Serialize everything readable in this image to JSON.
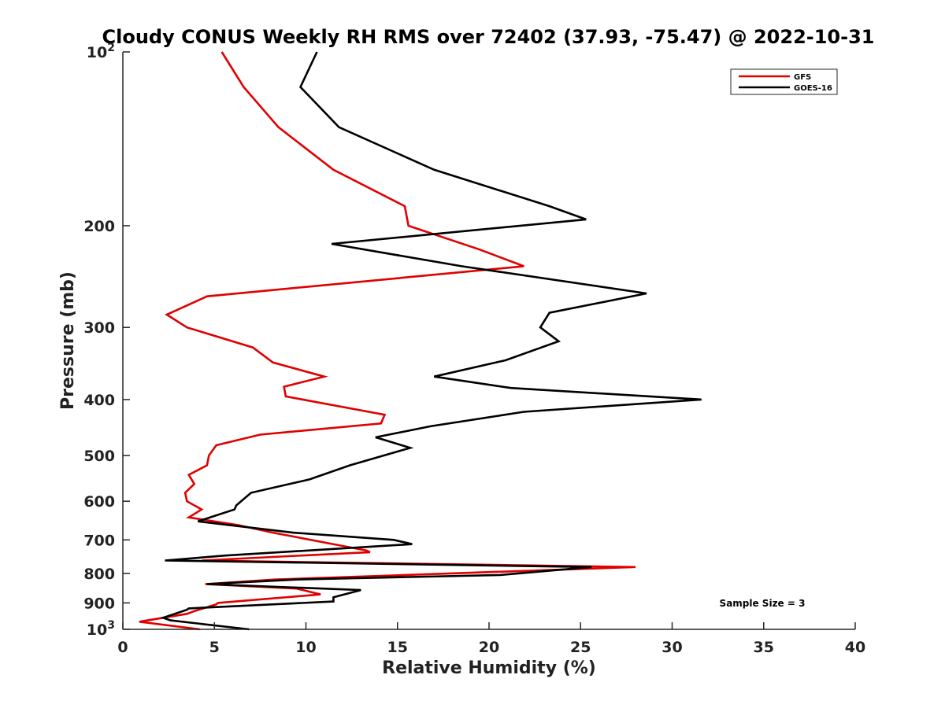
{
  "chart_data": {
    "type": "line",
    "title": "Cloudy CONUS Weekly RH RMS over 72402 (37.93, -75.47) @ 2022-10-31",
    "xlabel": "Relative Humidity (%)",
    "ylabel": "Pressure (mb)",
    "xlim": [
      0,
      40
    ],
    "ylim": [
      100,
      1000
    ],
    "y_scale": "log",
    "y_reversed": true,
    "x_ticks": [
      0,
      5,
      10,
      15,
      20,
      25,
      30,
      35,
      40
    ],
    "x_tick_labels": [
      "0",
      "5",
      "10",
      "15",
      "20",
      "25",
      "30",
      "35",
      "40"
    ],
    "y_ticks": [
      200,
      300,
      400,
      500,
      600,
      700,
      800,
      900
    ],
    "y_tick_labels": [
      "200",
      "300",
      "400",
      "500",
      "600",
      "700",
      "800",
      "900"
    ],
    "y_end_labels": [
      {
        "value": 100,
        "base": "10",
        "exp": "2"
      },
      {
        "value": 1000,
        "base": "10",
        "exp": "3"
      }
    ],
    "grid": false,
    "legend_position": "top-right",
    "annotation": "Sample Size = 3",
    "series": [
      {
        "name": "GFS",
        "color": "#e00000",
        "points": [
          [
            5.4,
            100
          ],
          [
            6.6,
            115
          ],
          [
            8.5,
            135
          ],
          [
            11.5,
            160
          ],
          [
            15.4,
            185
          ],
          [
            15.6,
            200
          ],
          [
            19.5,
            220
          ],
          [
            21.9,
            235
          ],
          [
            4.6,
            265
          ],
          [
            2.4,
            285
          ],
          [
            3.5,
            300
          ],
          [
            7.1,
            325
          ],
          [
            8.2,
            345
          ],
          [
            11.0,
            365
          ],
          [
            8.8,
            380
          ],
          [
            8.9,
            395
          ],
          [
            14.3,
            425
          ],
          [
            14.1,
            440
          ],
          [
            7.5,
            460
          ],
          [
            5.1,
            480
          ],
          [
            4.7,
            500
          ],
          [
            4.6,
            520
          ],
          [
            3.6,
            540
          ],
          [
            3.9,
            560
          ],
          [
            3.4,
            580
          ],
          [
            3.5,
            600
          ],
          [
            4.3,
            620
          ],
          [
            3.6,
            640
          ],
          [
            6.3,
            660
          ],
          [
            8.2,
            680
          ],
          [
            13.3,
            730
          ],
          [
            13.5,
            735
          ],
          [
            4.3,
            760
          ],
          [
            28.0,
            780
          ],
          [
            8.3,
            820
          ],
          [
            4.5,
            835
          ],
          [
            9.5,
            850
          ],
          [
            10.8,
            870
          ],
          [
            5.2,
            900
          ],
          [
            5.1,
            905
          ],
          [
            3.9,
            930
          ],
          [
            3.5,
            940
          ],
          [
            0.9,
            970
          ],
          [
            4.2,
            1000
          ]
        ]
      },
      {
        "name": "GOES-16",
        "color": "#000000",
        "points": [
          [
            10.6,
            100
          ],
          [
            9.7,
            115
          ],
          [
            11.8,
            135
          ],
          [
            17.0,
            160
          ],
          [
            23.3,
            185
          ],
          [
            25.3,
            195
          ],
          [
            11.4,
            215
          ],
          [
            18.5,
            235
          ],
          [
            28.6,
            262
          ],
          [
            23.3,
            283
          ],
          [
            22.8,
            300
          ],
          [
            23.8,
            317
          ],
          [
            20.9,
            342
          ],
          [
            17.0,
            365
          ],
          [
            21.2,
            382
          ],
          [
            31.6,
            400
          ],
          [
            21.9,
            420
          ],
          [
            16.8,
            445
          ],
          [
            13.8,
            465
          ],
          [
            15.7,
            485
          ],
          [
            12.4,
            520
          ],
          [
            10.2,
            550
          ],
          [
            7.0,
            580
          ],
          [
            6.2,
            610
          ],
          [
            6.1,
            620
          ],
          [
            4.1,
            650
          ],
          [
            9.3,
            680
          ],
          [
            14.8,
            700
          ],
          [
            15.8,
            712
          ],
          [
            5.6,
            745
          ],
          [
            2.3,
            760
          ],
          [
            25.6,
            780
          ],
          [
            20.6,
            805
          ],
          [
            9.5,
            820
          ],
          [
            4.6,
            835
          ],
          [
            13.0,
            855
          ],
          [
            11.5,
            880
          ],
          [
            11.5,
            895
          ],
          [
            3.6,
            920
          ],
          [
            3.5,
            925
          ],
          [
            2.2,
            955
          ],
          [
            2.6,
            965
          ],
          [
            6.9,
            1000
          ]
        ]
      }
    ]
  }
}
